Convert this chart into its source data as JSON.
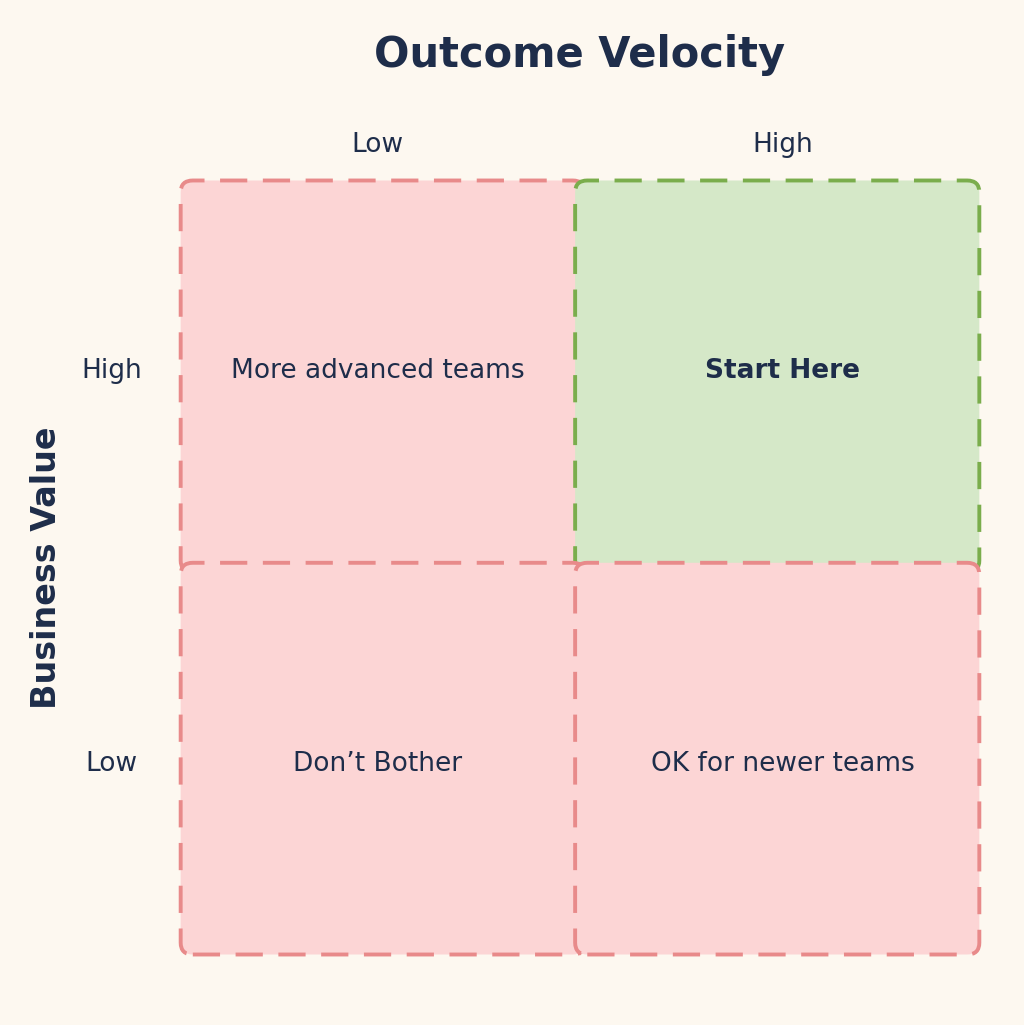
{
  "title": "Outcome Velocity",
  "ylabel": "Business Value",
  "background_color": "#fdf8f0",
  "title_fontsize": 30,
  "title_color": "#1e2d4a",
  "col_row_label_fontsize": 19,
  "axis_label_fontsize": 24,
  "quadrant_text_fontsize": 19,
  "quadrants": [
    {
      "label": "More advanced teams",
      "col": 0,
      "row": 1,
      "bg_color": "#fcd5d5",
      "border_color": "#e88a8a",
      "bold": false
    },
    {
      "label": "Start Here",
      "col": 1,
      "row": 1,
      "bg_color": "#d5e8c8",
      "border_color": "#7aad4c",
      "bold": true
    },
    {
      "label": "Don’t Bother",
      "col": 0,
      "row": 0,
      "bg_color": "#fcd5d5",
      "border_color": "#e88a8a",
      "bold": false
    },
    {
      "label": "OK for newer teams",
      "col": 1,
      "row": 0,
      "bg_color": "#fcd5d5",
      "border_color": "#e88a8a",
      "bold": false
    }
  ],
  "col_labels": [
    "Low",
    "High"
  ],
  "row_labels": [
    "High",
    "Low"
  ],
  "text_color": "#1e2d4a"
}
